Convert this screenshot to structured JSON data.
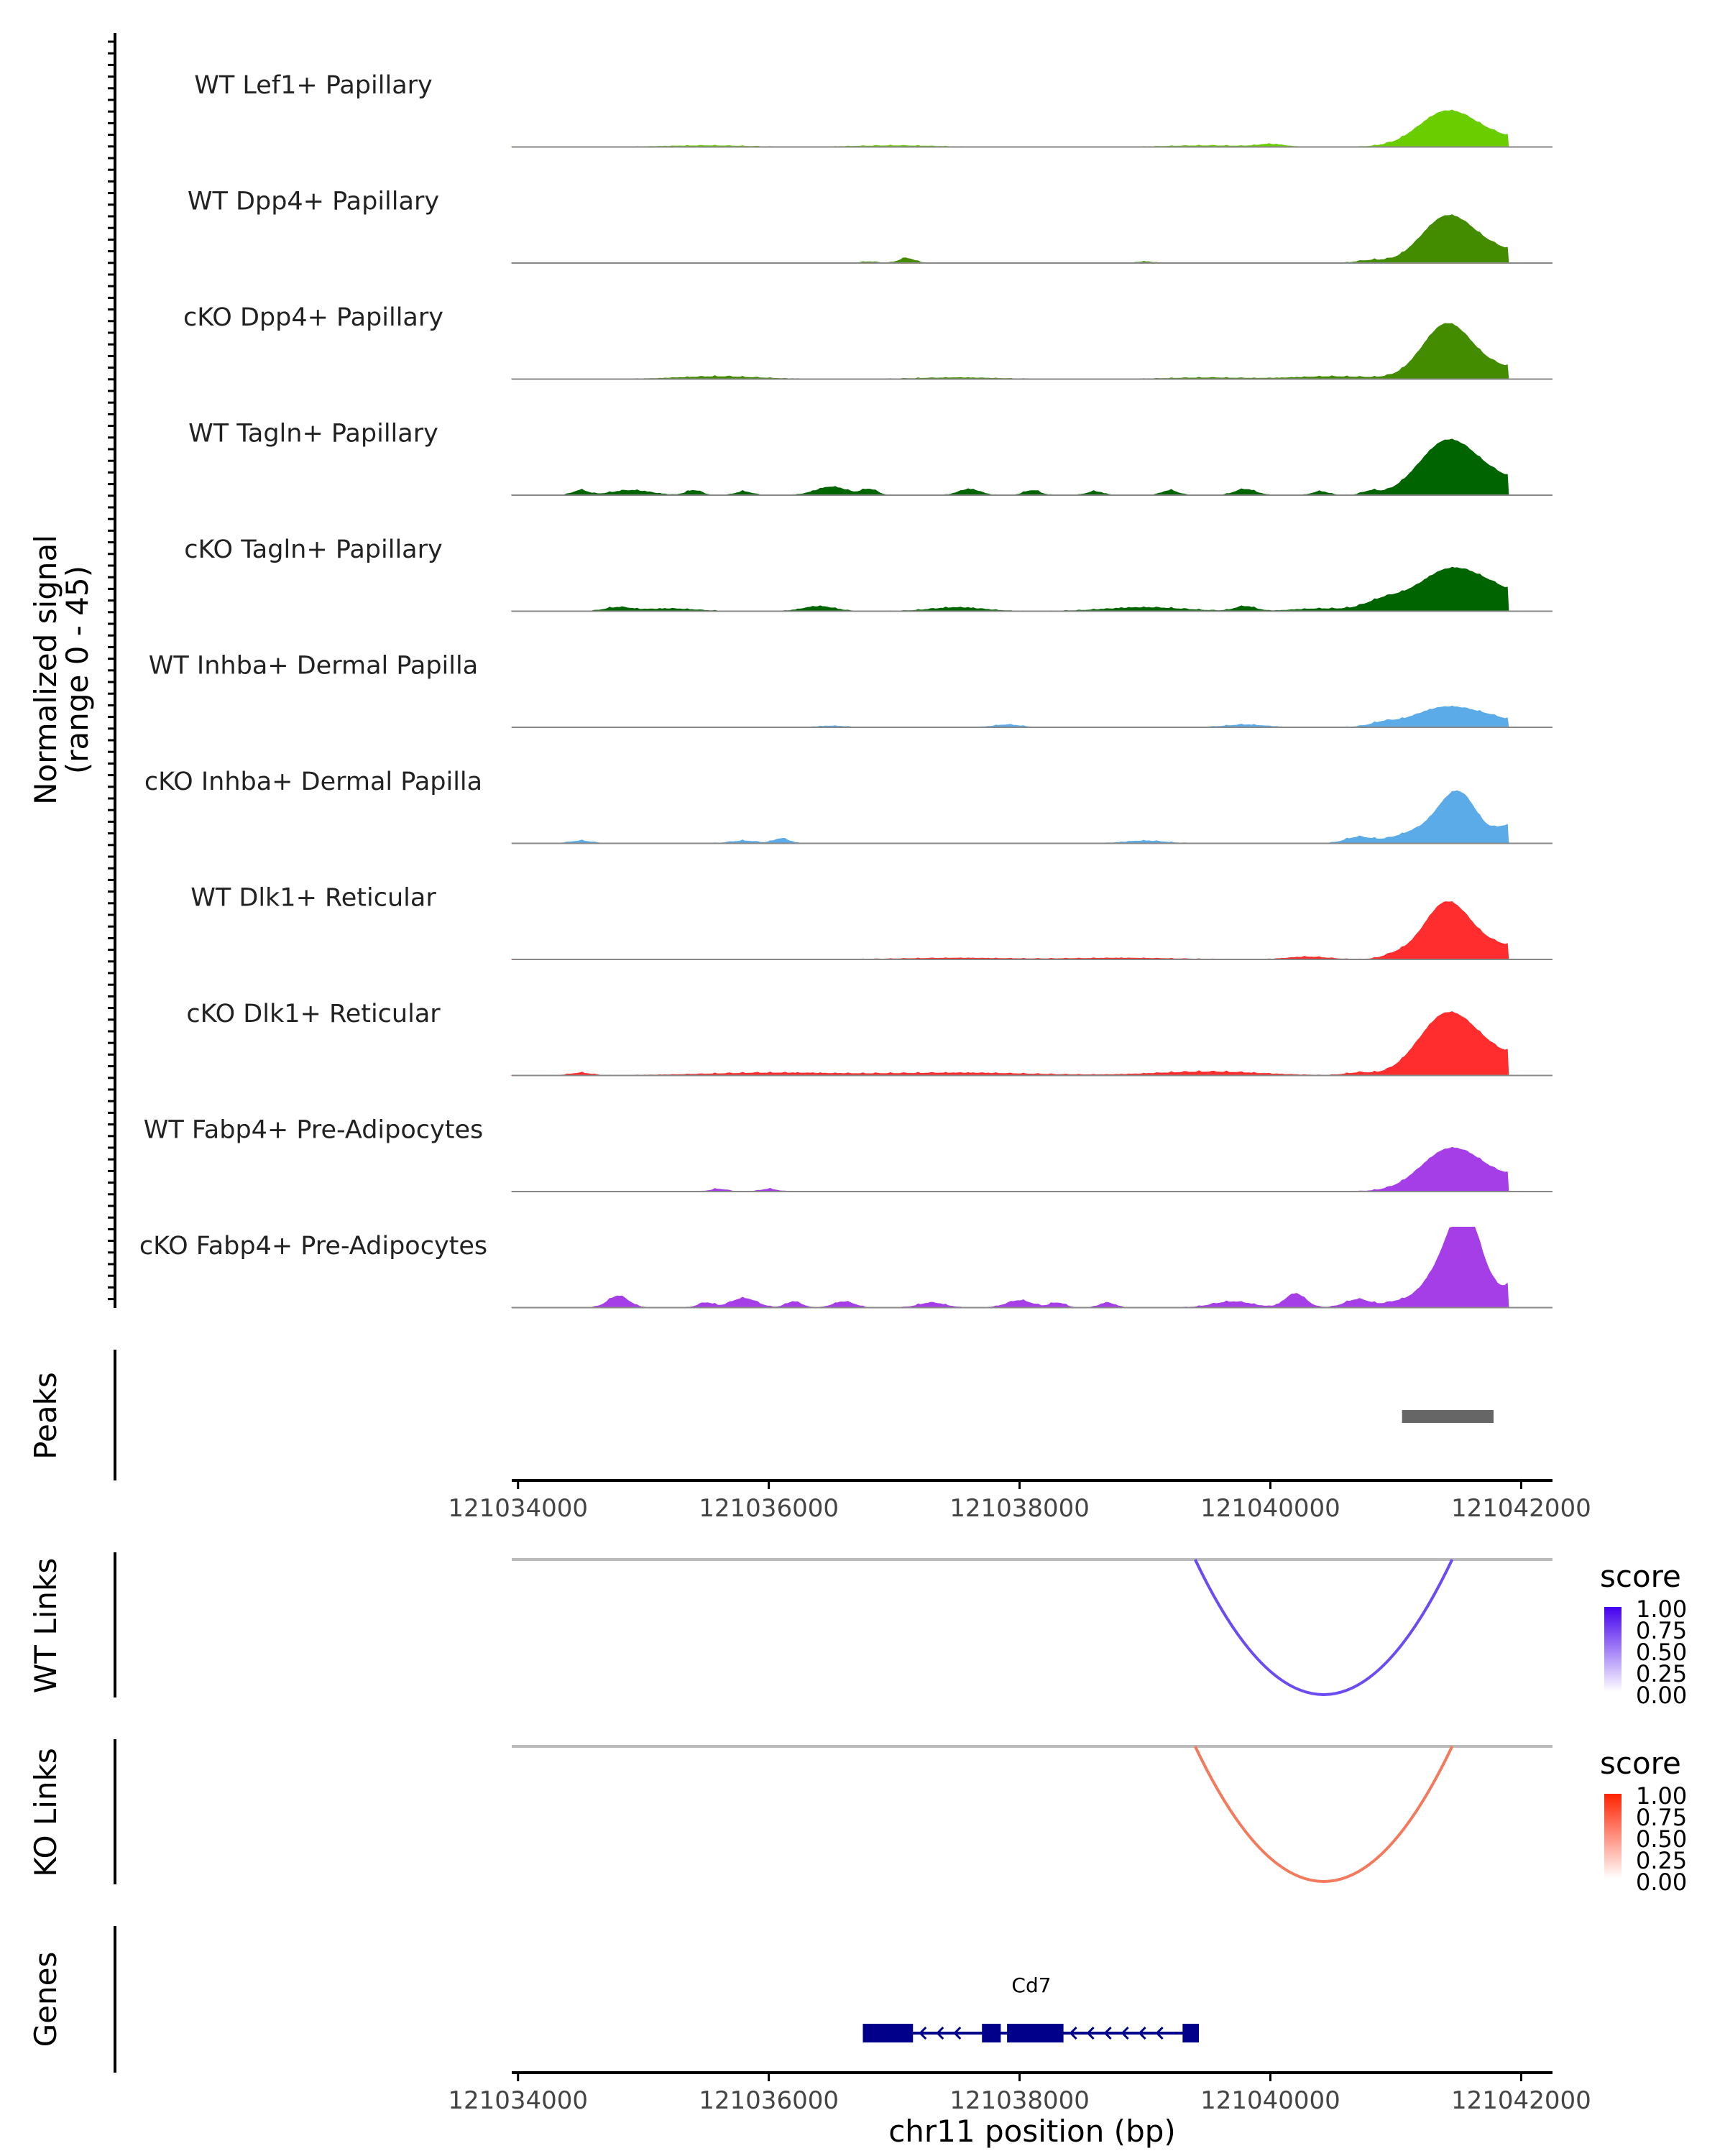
{
  "chart_data": {
    "type": "area",
    "title": "",
    "region": {
      "chrom": "chr11",
      "xlim": [
        121033950,
        121042250
      ]
    },
    "coverage": {
      "ylabel_line1": "Normalized signal",
      "ylabel_line2": "(range 0 - 45)",
      "ylim": [
        0,
        45
      ],
      "tracks": [
        {
          "name": "WT Lef1+ Papillary",
          "color": "#6acd00",
          "bumps": [
            [
              121041400,
              28,
              220
            ],
            [
              121041800,
              8,
              300
            ],
            [
              121035500,
              1,
              300
            ],
            [
              121037000,
              1,
              300
            ],
            [
              121039500,
              1,
              300
            ],
            [
              121040000,
              2,
              100
            ]
          ]
        },
        {
          "name": "WT Dpp4+ Papillary",
          "color": "#438c00",
          "bumps": [
            [
              121041400,
              35,
              200
            ],
            [
              121041750,
              12,
              300
            ],
            [
              121037100,
              4,
              60
            ],
            [
              121036800,
              1,
              60
            ],
            [
              121039000,
              1,
              60
            ],
            [
              121040800,
              2,
              100
            ]
          ]
        },
        {
          "name": "cKO Dpp4+ Papillary",
          "color": "#438c00",
          "bumps": [
            [
              121041400,
              44,
              190
            ],
            [
              121041800,
              10,
              300
            ],
            [
              121035600,
              2,
              300
            ],
            [
              121037500,
              1,
              300
            ],
            [
              121039500,
              1,
              300
            ],
            [
              121040500,
              2,
              300
            ]
          ]
        },
        {
          "name": "WT Tagln+ Papillary",
          "color": "#006400",
          "bumps": [
            [
              121041400,
              42,
              220
            ],
            [
              121041800,
              14,
              300
            ],
            [
              121034500,
              4,
              60
            ],
            [
              121034900,
              4,
              150
            ],
            [
              121035400,
              4,
              60
            ],
            [
              121035800,
              3,
              60
            ],
            [
              121036500,
              7,
              120
            ],
            [
              121036800,
              5,
              60
            ],
            [
              121037600,
              5,
              80
            ],
            [
              121038100,
              4,
              60
            ],
            [
              121038600,
              3,
              60
            ],
            [
              121039200,
              4,
              60
            ],
            [
              121039800,
              5,
              80
            ],
            [
              121040400,
              3,
              60
            ],
            [
              121040800,
              3,
              60
            ]
          ]
        },
        {
          "name": "cKO Tagln+ Papillary",
          "color": "#006400",
          "bumps": [
            [
              121041400,
              30,
              250
            ],
            [
              121041800,
              16,
              300
            ],
            [
              121040900,
              8,
              150
            ],
            [
              121034800,
              3,
              100
            ],
            [
              121035200,
              2,
              200
            ],
            [
              121036400,
              4,
              120
            ],
            [
              121037500,
              3,
              200
            ],
            [
              121039000,
              3,
              300
            ],
            [
              121039800,
              4,
              80
            ],
            [
              121040400,
              2,
              200
            ]
          ]
        },
        {
          "name": "WT Inhba+ Dermal Papilla",
          "color": "#5aabe8",
          "bumps": [
            [
              121041400,
              17,
              250
            ],
            [
              121041800,
              5,
              200
            ],
            [
              121040900,
              3,
              100
            ],
            [
              121036500,
              1,
              100
            ],
            [
              121037900,
              2,
              100
            ],
            [
              121039800,
              2,
              150
            ]
          ]
        },
        {
          "name": "cKO Inhba+ Dermal Papilla",
          "color": "#5aabe8",
          "bumps": [
            [
              121041500,
              42,
              150
            ],
            [
              121041200,
              10,
              200
            ],
            [
              121041900,
              14,
              100
            ],
            [
              121040700,
              5,
              100
            ],
            [
              121034500,
              2,
              80
            ],
            [
              121035800,
              2,
              100
            ],
            [
              121036100,
              4,
              60
            ],
            [
              121039000,
              2,
              150
            ]
          ]
        },
        {
          "name": "WT Dlk1+ Reticular",
          "color": "#ff2d2d",
          "bumps": [
            [
              121041400,
              45,
              180
            ],
            [
              121041800,
              12,
              300
            ],
            [
              121040300,
              2,
              150
            ],
            [
              121041000,
              3,
              100
            ],
            [
              121037500,
              1,
              400
            ],
            [
              121038800,
              1,
              400
            ]
          ]
        },
        {
          "name": "cKO Dlk1+ Reticular",
          "color": "#ff2d2d",
          "bumps": [
            [
              121041400,
              50,
              220
            ],
            [
              121041800,
              16,
              250
            ],
            [
              121034500,
              2,
              80
            ],
            [
              121036000,
              2,
              500
            ],
            [
              121037500,
              2,
              600
            ],
            [
              121039500,
              3,
              400
            ],
            [
              121040700,
              2,
              100
            ],
            [
              121041950,
              4,
              60
            ]
          ]
        },
        {
          "name": "WT Fabp4+ Pre-Adipocytes",
          "color": "#a63ee8",
          "bumps": [
            [
              121041400,
              30,
              220
            ],
            [
              121041700,
              14,
              250
            ],
            [
              121035600,
              2,
              60
            ],
            [
              121036000,
              2,
              60
            ],
            [
              121041900,
              3,
              60
            ]
          ]
        },
        {
          "name": "cKO Fabp4+ Pre-Adipocytes",
          "color": "#a63ee8",
          "bumps": [
            [
              121041550,
              70,
              120
            ],
            [
              121041350,
              28,
              150
            ],
            [
              121041800,
              14,
              200
            ],
            [
              121034800,
              10,
              80
            ],
            [
              121035500,
              4,
              60
            ],
            [
              121035800,
              8,
              100
            ],
            [
              121036200,
              5,
              60
            ],
            [
              121036600,
              5,
              80
            ],
            [
              121037300,
              4,
              100
            ],
            [
              121038000,
              6,
              100
            ],
            [
              121038300,
              4,
              60
            ],
            [
              121038700,
              4,
              60
            ],
            [
              121039700,
              5,
              150
            ],
            [
              121040200,
              12,
              80
            ],
            [
              121040700,
              7,
              100
            ],
            [
              121041000,
              4,
              100
            ],
            [
              121041950,
              10,
              60
            ]
          ]
        }
      ]
    },
    "peaks": {
      "label": "Peaks",
      "regions": [
        [
          121041050,
          121041780
        ]
      ]
    },
    "axis_ticks": [
      121034000,
      121036000,
      121038000,
      121040000,
      121042000
    ],
    "axis_tick_labels": [
      "121034000",
      "121036000",
      "121038000",
      "121040000",
      "121042000"
    ],
    "links": [
      {
        "label": "WT Links",
        "legend_title": "score",
        "color": "#6d4bf2",
        "ramp": [
          "#ffffff",
          "#4400ee"
        ],
        "legend_labels": [
          "1.00",
          "0.75",
          "0.50",
          "0.25",
          "0.00"
        ],
        "start": 121039400,
        "end": 121041450,
        "score": 0.6
      },
      {
        "label": "KO Links",
        "legend_title": "score",
        "color": "#f47a5e",
        "ramp": [
          "#ffffff",
          "#ff2200"
        ],
        "legend_labels": [
          "1.00",
          "0.75",
          "0.50",
          "0.25",
          "0.00"
        ],
        "start": 121039400,
        "end": 121041450,
        "score": 0.6
      }
    ],
    "genes": {
      "label": "Genes",
      "name": "Cd7",
      "strand": "-",
      "start": 121036750,
      "end": 121039430,
      "exons": [
        [
          121036750,
          121037150
        ],
        [
          121037700,
          121037850
        ],
        [
          121037900,
          121038350
        ],
        [
          121039300,
          121039430
        ]
      ]
    },
    "xlabel": "chr11 position (bp)"
  }
}
